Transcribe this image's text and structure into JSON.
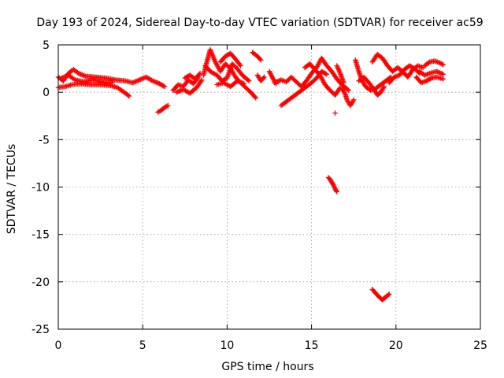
{
  "chart_data": {
    "type": "scatter",
    "title": "Day 193 of 2024, Sidereal Day-to-day VTEC variation (SDTVAR) for receiver ac59",
    "xlabel": "GPS time / hours",
    "ylabel": "SDTVAR / TECUs",
    "xlim": [
      0,
      25
    ],
    "ylim": [
      -25,
      5
    ],
    "xticks": [
      0,
      5,
      10,
      15,
      20,
      25
    ],
    "yticks": [
      -25,
      -20,
      -15,
      -10,
      -5,
      0,
      5
    ],
    "grid": true,
    "marker": "+",
    "color": "#ff0000",
    "series": [
      {
        "name": "SDTVAR",
        "segments": [
          [
            [
              0.0,
              1.6
            ],
            [
              0.3,
              1.2
            ],
            [
              0.6,
              2.0
            ],
            [
              0.9,
              2.4
            ],
            [
              1.2,
              2.0
            ],
            [
              1.6,
              1.7
            ],
            [
              2.2,
              1.6
            ],
            [
              2.8,
              1.5
            ],
            [
              3.4,
              1.3
            ],
            [
              4.0,
              1.2
            ],
            [
              4.4,
              1.0
            ],
            [
              4.8,
              1.3
            ],
            [
              5.2,
              1.6
            ],
            [
              5.6,
              1.2
            ],
            [
              6.0,
              0.9
            ],
            [
              6.3,
              0.6
            ]
          ],
          [
            [
              0.0,
              0.5
            ],
            [
              0.4,
              0.6
            ],
            [
              0.8,
              0.8
            ],
            [
              1.3,
              0.9
            ],
            [
              1.9,
              0.8
            ],
            [
              2.5,
              0.8
            ],
            [
              3.1,
              0.7
            ],
            [
              3.5,
              0.5
            ],
            [
              3.9,
              0.0
            ],
            [
              4.2,
              -0.4
            ]
          ],
          [
            [
              0.2,
              1.5
            ],
            [
              0.6,
              1.8
            ],
            [
              1.0,
              1.3
            ],
            [
              1.5,
              1.1
            ],
            [
              2.0,
              1.3
            ],
            [
              2.6,
              1.1
            ],
            [
              3.2,
              1.0
            ]
          ],
          [
            [
              5.9,
              -2.1
            ],
            [
              6.1,
              -1.9
            ],
            [
              6.3,
              -1.6
            ],
            [
              6.5,
              -1.4
            ]
          ],
          [
            [
              6.8,
              0.2
            ],
            [
              7.1,
              0.8
            ],
            [
              7.4,
              0.6
            ],
            [
              7.7,
              1.3
            ],
            [
              8.0,
              0.9
            ],
            [
              8.3,
              1.6
            ]
          ],
          [
            [
              7.0,
              0.0
            ],
            [
              7.4,
              0.3
            ],
            [
              7.8,
              -0.1
            ],
            [
              8.2,
              0.5
            ],
            [
              8.5,
              1.3
            ]
          ],
          [
            [
              7.5,
              1.5
            ],
            [
              7.8,
              1.8
            ],
            [
              8.1,
              1.4
            ],
            [
              8.4,
              2.0
            ]
          ],
          [
            [
              8.6,
              1.8
            ],
            [
              8.8,
              3.2
            ],
            [
              9.0,
              4.5
            ],
            [
              9.3,
              3.2
            ],
            [
              9.6,
              2.2
            ],
            [
              9.9,
              3.0
            ],
            [
              10.2,
              2.5
            ],
            [
              10.5,
              1.6
            ],
            [
              10.8,
              1.0
            ],
            [
              11.1,
              0.5
            ],
            [
              11.4,
              0.0
            ],
            [
              11.7,
              -0.6
            ]
          ],
          [
            [
              8.7,
              2.8
            ],
            [
              9.0,
              2.2
            ],
            [
              9.4,
              1.8
            ],
            [
              9.7,
              1.2
            ],
            [
              10.0,
              1.5
            ],
            [
              10.3,
              3.0
            ],
            [
              10.6,
              2.5
            ],
            [
              10.9,
              1.8
            ],
            [
              11.3,
              1.2
            ]
          ],
          [
            [
              9.6,
              3.2
            ],
            [
              9.9,
              3.8
            ],
            [
              10.2,
              4.1
            ],
            [
              10.5,
              3.5
            ],
            [
              10.8,
              2.8
            ]
          ],
          [
            [
              9.4,
              0.8
            ],
            [
              9.8,
              1.0
            ],
            [
              10.2,
              0.6
            ],
            [
              10.6,
              1.2
            ],
            [
              11.0,
              0.9
            ]
          ],
          [
            [
              11.5,
              4.2
            ],
            [
              11.8,
              3.8
            ],
            [
              12.0,
              3.4
            ]
          ],
          [
            [
              11.8,
              1.8
            ],
            [
              12.0,
              1.2
            ],
            [
              12.2,
              1.6
            ]
          ],
          [
            [
              12.5,
              2.2
            ],
            [
              12.7,
              1.5
            ],
            [
              12.9,
              0.9
            ]
          ],
          [
            [
              12.8,
              1.0
            ],
            [
              13.2,
              1.3
            ],
            [
              13.5,
              1.1
            ],
            [
              13.8,
              1.6
            ],
            [
              14.1,
              1.1
            ],
            [
              14.4,
              0.6
            ],
            [
              14.7,
              1.2
            ],
            [
              15.0,
              2.0
            ],
            [
              15.3,
              2.6
            ],
            [
              15.6,
              3.6
            ],
            [
              15.9,
              2.8
            ],
            [
              16.2,
              2.2
            ],
            [
              16.5,
              1.4
            ],
            [
              16.8,
              0.8
            ],
            [
              17.2,
              0.2
            ]
          ],
          [
            [
              13.2,
              -1.4
            ],
            [
              13.5,
              -1.0
            ],
            [
              13.8,
              -0.6
            ],
            [
              14.1,
              -0.2
            ],
            [
              14.4,
              0.2
            ],
            [
              14.7,
              0.6
            ],
            [
              15.0,
              1.0
            ],
            [
              15.3,
              1.5
            ],
            [
              15.6,
              2.2
            ],
            [
              15.9,
              1.9
            ]
          ],
          [
            [
              14.6,
              2.6
            ],
            [
              14.9,
              3.0
            ],
            [
              15.2,
              2.4
            ],
            [
              15.5,
              1.8
            ],
            [
              15.8,
              0.8
            ],
            [
              16.1,
              0.2
            ],
            [
              16.4,
              -0.3
            ],
            [
              16.7,
              0.5
            ]
          ],
          [
            [
              16.4,
              -2.2
            ]
          ],
          [
            [
              16.8,
              0.4
            ],
            [
              17.0,
              -0.2
            ],
            [
              17.1,
              -0.8
            ],
            [
              17.3,
              -1.4
            ],
            [
              17.5,
              -0.8
            ]
          ],
          [
            [
              16.5,
              2.8
            ],
            [
              16.7,
              2.0
            ],
            [
              16.9,
              1.0
            ]
          ],
          [
            [
              17.6,
              3.4
            ],
            [
              17.8,
              2.2
            ],
            [
              18.0,
              1.2
            ],
            [
              18.2,
              0.6
            ],
            [
              18.5,
              0.2
            ],
            [
              18.8,
              0.4
            ],
            [
              19.1,
              0.8
            ],
            [
              19.4,
              1.2
            ],
            [
              19.7,
              1.6
            ]
          ],
          [
            [
              17.8,
              1.2
            ],
            [
              18.1,
              1.6
            ],
            [
              18.4,
              1.0
            ],
            [
              18.7,
              0.3
            ],
            [
              18.9,
              -0.3
            ],
            [
              19.1,
              0.0
            ],
            [
              19.3,
              0.6
            ]
          ],
          [
            [
              18.6,
              3.2
            ],
            [
              18.9,
              4.0
            ],
            [
              19.2,
              3.6
            ],
            [
              19.5,
              2.8
            ],
            [
              19.8,
              2.2
            ],
            [
              20.1,
              2.6
            ],
            [
              20.4,
              2.2
            ],
            [
              20.7,
              1.6
            ],
            [
              21.0,
              2.4
            ],
            [
              21.3,
              2.8
            ],
            [
              21.6,
              2.6
            ]
          ],
          [
            [
              19.6,
              1.0
            ],
            [
              19.9,
              1.6
            ],
            [
              20.2,
              1.8
            ],
            [
              20.5,
              2.4
            ],
            [
              20.8,
              2.8
            ],
            [
              21.1,
              2.5
            ],
            [
              21.4,
              2.0
            ]
          ],
          [
            [
              21.2,
              1.6
            ],
            [
              21.5,
              1.0
            ],
            [
              21.8,
              1.2
            ],
            [
              22.1,
              1.5
            ],
            [
              22.4,
              1.6
            ],
            [
              22.8,
              1.4
            ]
          ],
          [
            [
              21.7,
              2.8
            ],
            [
              22.0,
              3.2
            ],
            [
              22.3,
              3.3
            ],
            [
              22.6,
              3.1
            ],
            [
              22.8,
              2.9
            ]
          ],
          [
            [
              21.4,
              2.2
            ],
            [
              21.7,
              1.8
            ],
            [
              22.0,
              2.0
            ],
            [
              22.4,
              2.2
            ],
            [
              22.8,
              1.9
            ]
          ],
          [
            [
              16.0,
              -9.0
            ],
            [
              16.1,
              -9.2
            ],
            [
              16.2,
              -9.5
            ],
            [
              16.3,
              -9.8
            ],
            [
              16.4,
              -10.2
            ],
            [
              16.5,
              -10.5
            ]
          ],
          [
            [
              18.6,
              -20.8
            ],
            [
              18.8,
              -21.2
            ],
            [
              19.0,
              -21.6
            ],
            [
              19.2,
              -21.9
            ],
            [
              19.4,
              -21.6
            ],
            [
              19.6,
              -21.3
            ]
          ]
        ]
      }
    ]
  }
}
